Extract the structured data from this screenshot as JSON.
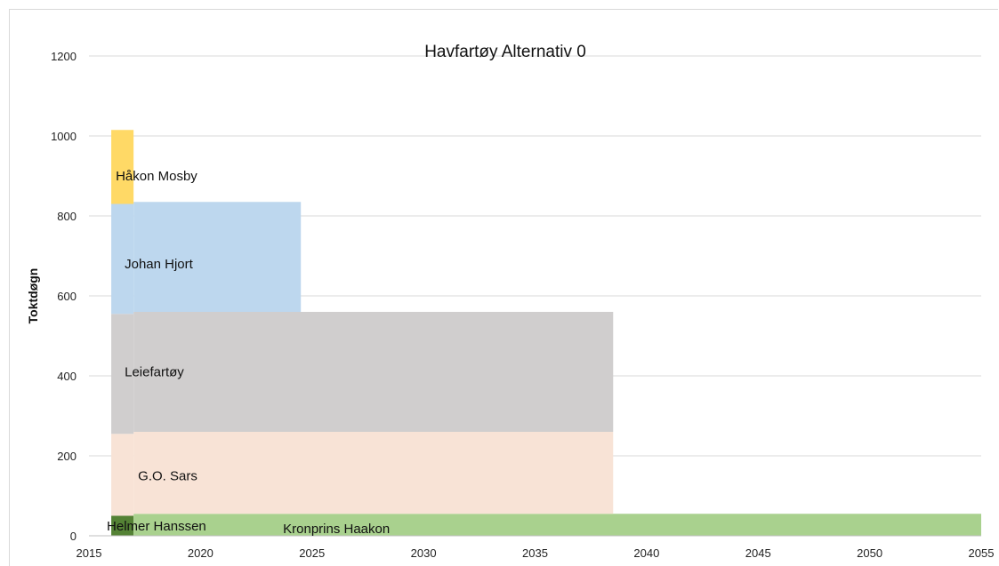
{
  "chart_data": {
    "type": "area",
    "title": "Havfartøy Alternativ  0",
    "xlabel": "",
    "ylabel": "Toktdøgn",
    "xlim": [
      2015,
      2055
    ],
    "ylim": [
      0,
      1200
    ],
    "x_ticks": [
      "2015",
      "2020",
      "2025",
      "2030",
      "2035",
      "2040",
      "2045",
      "2050",
      "2055"
    ],
    "y_ticks": [
      "0",
      "200",
      "400",
      "600",
      "800",
      "1000",
      "1200"
    ],
    "grid": true,
    "legend": "none",
    "series": [
      {
        "name": "Helmer Hanssen",
        "color": "#548235",
        "segments": [
          {
            "x0": 2016,
            "x1": 2017,
            "y0": 0,
            "y1": 50
          }
        ]
      },
      {
        "name": "Kronprins Haakon",
        "color": "#a9d18e",
        "segments": [
          {
            "x0": 2017,
            "x1": 2055,
            "y0": 0,
            "y1": 55
          }
        ]
      },
      {
        "name": "G.O. Sars",
        "color": "#f8e3d6",
        "segments": [
          {
            "x0": 2016,
            "x1": 2017,
            "y0": 50,
            "y1": 255
          },
          {
            "x0": 2017,
            "x1": 2038.5,
            "y0": 55,
            "y1": 260
          }
        ]
      },
      {
        "name": "Leiefartøy",
        "color": "#d0cece",
        "segments": [
          {
            "x0": 2016,
            "x1": 2017,
            "y0": 255,
            "y1": 555
          },
          {
            "x0": 2017,
            "x1": 2038.5,
            "y0": 260,
            "y1": 560
          }
        ]
      },
      {
        "name": "Johan Hjort",
        "color": "#bdd7ee",
        "segments": [
          {
            "x0": 2016,
            "x1": 2017,
            "y0": 555,
            "y1": 830
          },
          {
            "x0": 2017,
            "x1": 2024.5,
            "y0": 560,
            "y1": 835
          }
        ]
      },
      {
        "name": "Håkon Mosby",
        "color": "#ffd966",
        "segments": [
          {
            "x0": 2016,
            "x1": 2017,
            "y0": 830,
            "y1": 1015
          }
        ]
      }
    ],
    "labels": [
      {
        "text": "Håkon Mosby",
        "x": 2016.2,
        "y": 900
      },
      {
        "text": "Johan Hjort",
        "x": 2016.6,
        "y": 680
      },
      {
        "text": "Leiefartøy",
        "x": 2016.6,
        "y": 410
      },
      {
        "text": "G.O. Sars",
        "x": 2017.2,
        "y": 150
      },
      {
        "text": "Helmer Hanssen",
        "x": 2015.8,
        "y": 25
      },
      {
        "text": "Kronprins Haakon",
        "x": 2023.7,
        "y": 18
      }
    ]
  }
}
